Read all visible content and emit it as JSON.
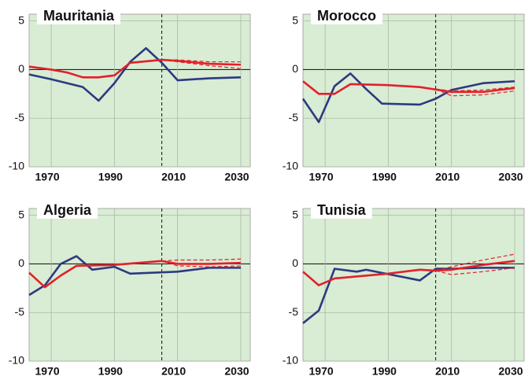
{
  "chart_data": [
    {
      "type": "line",
      "title": "Mauritania",
      "xlim": [
        1963,
        2033
      ],
      "xticks": [
        1970,
        1990,
        2010,
        2030
      ],
      "ylim": [
        -10,
        5.7
      ],
      "yticks": [
        -10,
        -5,
        0,
        5
      ],
      "grid": true,
      "vline": 2005,
      "series": [
        {
          "color": "#2b3a80",
          "x": [
            1963,
            1970,
            1980,
            1985,
            1990,
            1995,
            2000,
            2005,
            2010,
            2020,
            2030
          ],
          "values": [
            -0.5,
            -1,
            -1.8,
            -3.2,
            -1.4,
            0.8,
            2.2,
            0.7,
            -1.1,
            -0.9,
            -0.8
          ]
        },
        {
          "color": "#e3202a",
          "x": [
            1963,
            1970,
            1975,
            1980,
            1985,
            1990,
            1995,
            2005,
            2010,
            2020,
            2030
          ],
          "values": [
            0.3,
            0,
            -0.3,
            -0.8,
            -0.8,
            -0.6,
            0.7,
            1.0,
            0.9,
            0.6,
            0.5
          ]
        },
        {
          "color": "#e3202a",
          "dashed": true,
          "x": [
            2005,
            2010,
            2020,
            2030
          ],
          "values": [
            1,
            1,
            0.8,
            0.8
          ]
        },
        {
          "color": "#e3202a",
          "dashed": true,
          "x": [
            2005,
            2010,
            2020,
            2030
          ],
          "values": [
            1,
            0.8,
            0.4,
            0.1
          ]
        }
      ]
    },
    {
      "type": "line",
      "title": "Morocco",
      "xlim": [
        1963,
        2033
      ],
      "xticks": [
        1970,
        1990,
        2010,
        2030
      ],
      "ylim": [
        -10,
        5.7
      ],
      "yticks": [
        -10,
        -5,
        0,
        5
      ],
      "grid": true,
      "vline": 2005,
      "series": [
        {
          "color": "#2b3a80",
          "x": [
            1963,
            1968,
            1973,
            1978,
            1983,
            1988,
            2000,
            2005,
            2010,
            2020,
            2030
          ],
          "values": [
            -3,
            -5.4,
            -1.7,
            -0.4,
            -2,
            -3.5,
            -3.6,
            -3,
            -2.1,
            -1.4,
            -1.2
          ]
        },
        {
          "color": "#e3202a",
          "x": [
            1963,
            1968,
            1973,
            1978,
            1990,
            2000,
            2010,
            2020,
            2030
          ],
          "values": [
            -1.2,
            -2.5,
            -2.5,
            -1.5,
            -1.6,
            -1.8,
            -2.3,
            -2.3,
            -1.9
          ]
        },
        {
          "color": "#e3202a",
          "dashed": true,
          "x": [
            2005,
            2010,
            2020,
            2030
          ],
          "values": [
            -2,
            -2.2,
            -2.1,
            -1.8
          ]
        },
        {
          "color": "#e3202a",
          "dashed": true,
          "x": [
            2005,
            2010,
            2020,
            2030
          ],
          "values": [
            -2,
            -2.7,
            -2.6,
            -2.2
          ]
        }
      ]
    },
    {
      "type": "line",
      "title": "Algeria",
      "xlim": [
        1963,
        2033
      ],
      "xticks": [
        1970,
        1990,
        2010,
        2030
      ],
      "ylim": [
        -10,
        5.7
      ],
      "yticks": [
        -10,
        -5,
        0,
        5
      ],
      "grid": true,
      "vline": 2005,
      "series": [
        {
          "color": "#2b3a80",
          "x": [
            1963,
            1968,
            1973,
            1978,
            1983,
            1990,
            1995,
            2010,
            2020,
            2030
          ],
          "values": [
            -3.2,
            -2.2,
            0,
            0.8,
            -0.6,
            -0.3,
            -1,
            -0.8,
            -0.4,
            -0.4
          ]
        },
        {
          "color": "#e3202a",
          "x": [
            1963,
            1968,
            1973,
            1978,
            1990,
            2005,
            2010,
            2020,
            2030
          ],
          "values": [
            -0.9,
            -2.4,
            -1.2,
            -0.2,
            -0.1,
            0.3,
            0,
            0,
            0.1
          ]
        },
        {
          "color": "#e3202a",
          "dashed": true,
          "x": [
            2005,
            2010,
            2020,
            2030
          ],
          "values": [
            0.3,
            0.4,
            0.4,
            0.5
          ]
        },
        {
          "color": "#e3202a",
          "dashed": true,
          "x": [
            2005,
            2010,
            2020,
            2030
          ],
          "values": [
            0.3,
            -0.2,
            -0.3,
            -0.2
          ]
        }
      ]
    },
    {
      "type": "line",
      "title": "Tunisia",
      "xlim": [
        1963,
        2033
      ],
      "xticks": [
        1970,
        1990,
        2010,
        2030
      ],
      "ylim": [
        -10,
        5.7
      ],
      "yticks": [
        -10,
        -5,
        0,
        5
      ],
      "grid": true,
      "vline": 2005,
      "series": [
        {
          "color": "#2b3a80",
          "x": [
            1963,
            1968,
            1973,
            1980,
            1983,
            2000,
            2005,
            2010,
            2020,
            2030
          ],
          "values": [
            -6.1,
            -4.8,
            -0.5,
            -0.8,
            -0.6,
            -1.7,
            -0.5,
            -0.5,
            -0.4,
            -0.4
          ]
        },
        {
          "color": "#e3202a",
          "x": [
            1963,
            1968,
            1973,
            1990,
            2000,
            2005,
            2010,
            2020,
            2030
          ],
          "values": [
            -0.8,
            -2.2,
            -1.5,
            -1,
            -0.6,
            -0.7,
            -0.6,
            -0.1,
            0.3
          ]
        },
        {
          "color": "#e3202a",
          "dashed": true,
          "x": [
            2005,
            2010,
            2020,
            2030
          ],
          "values": [
            -0.7,
            -0.3,
            0.4,
            1
          ]
        },
        {
          "color": "#e3202a",
          "dashed": true,
          "x": [
            2005,
            2010,
            2020,
            2030
          ],
          "values": [
            -0.7,
            -1.1,
            -0.8,
            -0.4
          ]
        }
      ]
    }
  ]
}
